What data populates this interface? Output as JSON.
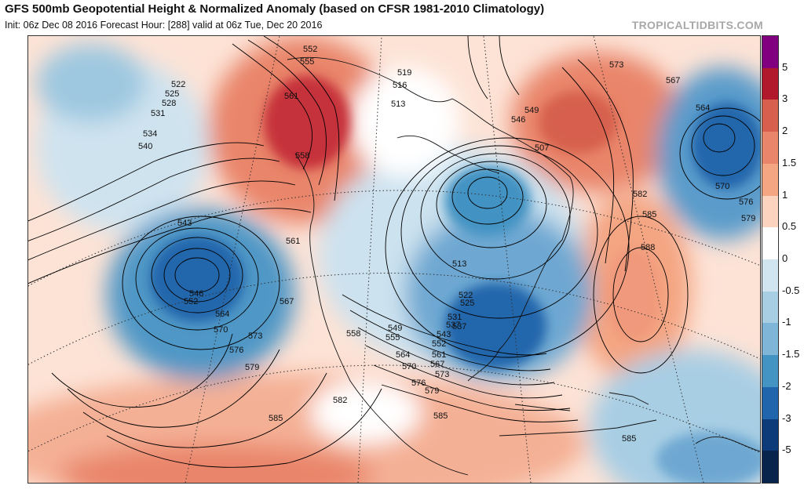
{
  "header": {
    "title": "GFS 500mb Geopotential Height & Normalized Anomaly (based on CFSR 1981-2010 Climatology)",
    "subtitle": "Init: 06z Dec 08 2016   Forecast Hour: [288]   valid at 06z Tue, Dec 20 2016",
    "brand": "TROPICALTIDBITS.COM"
  },
  "colorbar": {
    "ticks": [
      "5",
      "3",
      "2",
      "1.5",
      "1",
      "0.5",
      "0",
      "-0.5",
      "-1",
      "-1.5",
      "-2",
      "-3",
      "-5"
    ],
    "colors": [
      "#800080",
      "#b2182b",
      "#d6604d",
      "#e9856b",
      "#f4a582",
      "#fbd3be",
      "#ffffff",
      "#d1e5f0",
      "#a8cee4",
      "#7fb6d8",
      "#4393c3",
      "#2166ac",
      "#0d3b7a",
      "#08244d"
    ]
  },
  "map": {
    "height_labels": [
      "573",
      "567",
      "564",
      "570",
      "576",
      "579",
      "552",
      "555",
      "561",
      "558",
      "522",
      "525",
      "528",
      "531",
      "534",
      "540",
      "519",
      "516",
      "513",
      "549",
      "546",
      "507",
      "582",
      "585",
      "588",
      "543",
      "537",
      "567",
      "570",
      "573",
      "576",
      "579",
      "564",
      "561",
      "552",
      "546",
      "549",
      "555",
      "558",
      "513",
      "522",
      "525",
      "531",
      "537",
      "543",
      "552",
      "561",
      "564",
      "567",
      "570",
      "573",
      "576",
      "579",
      "582",
      "585",
      "585",
      "585"
    ]
  }
}
